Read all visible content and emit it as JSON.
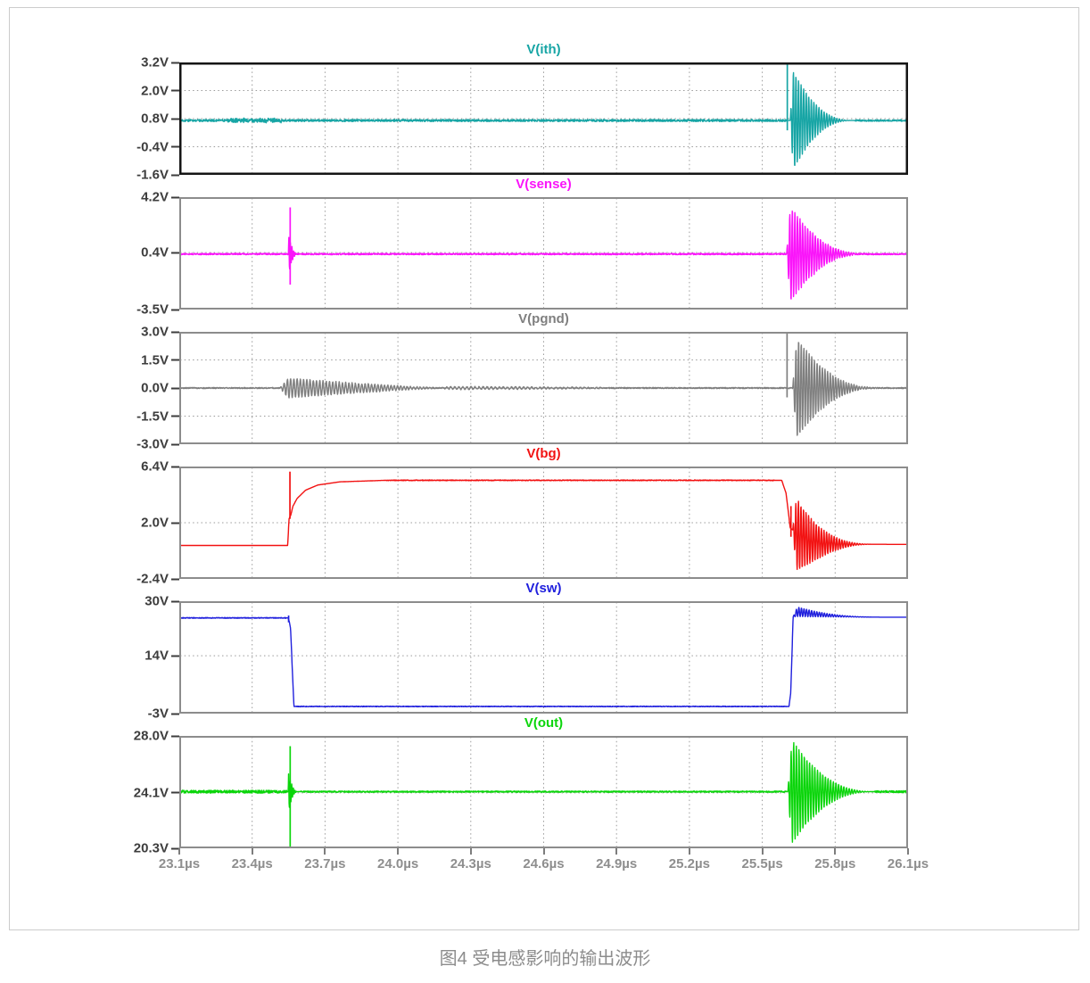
{
  "page": {
    "caption": "图4 受电感影响的输出波形"
  },
  "chart_data": {
    "type": "line",
    "x_unit": "µs",
    "x_range": [
      23.1,
      26.1
    ],
    "x_ticks": [
      {
        "label": "23.1µs",
        "v": 23.1
      },
      {
        "label": "23.4µs",
        "v": 23.4
      },
      {
        "label": "23.7µs",
        "v": 23.7
      },
      {
        "label": "24.0µs",
        "v": 24.0
      },
      {
        "label": "24.3µs",
        "v": 24.3
      },
      {
        "label": "24.6µs",
        "v": 24.6
      },
      {
        "label": "24.9µs",
        "v": 24.9
      },
      {
        "label": "25.2µs",
        "v": 25.2
      },
      {
        "label": "25.5µs",
        "v": 25.5
      },
      {
        "label": "25.8µs",
        "v": 25.8
      },
      {
        "label": "26.1µs",
        "v": 26.1
      }
    ],
    "grid": "dotted",
    "grid_color": "#9b9b9b",
    "panels": [
      {
        "title": "V(ith)",
        "color": "#17A5A5",
        "border": "#151515",
        "border_w": 2.5,
        "y_range": [
          -1.6,
          3.2
        ],
        "y_ticks": [
          {
            "label": "3.2V",
            "v": 3.2
          },
          {
            "label": "2.0V",
            "v": 2.0
          },
          {
            "label": "0.8V",
            "v": 0.8
          },
          {
            "label": "-0.4V",
            "v": -0.4
          },
          {
            "label": "-1.6V",
            "v": -1.6
          }
        ],
        "trace": {
          "base": [
            [
              23.1,
              0.72
            ],
            [
              26.1,
              0.72
            ]
          ],
          "noise": [
            {
              "t0": 23.1,
              "t1": 25.6,
              "amp": 0.045,
              "f": 60
            },
            {
              "t0": 23.3,
              "t1": 23.52,
              "amp": 0.07,
              "f": 45
            },
            {
              "t0": 25.88,
              "t1": 26.1,
              "amp": 0.035,
              "f": 60
            }
          ],
          "bursts": [
            {
              "t0": 25.615,
              "t1": 25.875,
              "amp": 2.4,
              "f": 95
            }
          ],
          "spikes": [
            {
              "t": 25.603,
              "hi": 3.18,
              "lo": 0.3
            }
          ]
        }
      },
      {
        "title": "V(sense)",
        "color": "#FA14FA",
        "border": "#8c8c8c",
        "border_w": 2,
        "y_range": [
          -3.5,
          4.2
        ],
        "y_ticks": [
          {
            "label": "4.2V",
            "v": 4.2
          },
          {
            "label": "0.4V",
            "v": 0.4
          },
          {
            "label": "-3.5V",
            "v": -3.5
          }
        ],
        "trace": {
          "base": [
            [
              23.1,
              0.3
            ],
            [
              26.1,
              0.3
            ]
          ],
          "noise": [
            {
              "t0": 23.1,
              "t1": 26.1,
              "amp": 0.05,
              "f": 55
            }
          ],
          "bursts": [
            {
              "t0": 23.549,
              "t1": 23.59,
              "amp": 1.4,
              "f": 150
            },
            {
              "t0": 25.6,
              "t1": 25.93,
              "amp": 3.7,
              "f": 95
            }
          ],
          "spikes": [
            {
              "t": 23.5565,
              "hi": 3.5,
              "lo": -1.8
            }
          ]
        }
      },
      {
        "title": "V(pgnd)",
        "color": "#7F7F7F",
        "border": "#8c8c8c",
        "border_w": 2,
        "y_range": [
          -3.0,
          3.0
        ],
        "y_ticks": [
          {
            "label": "3.0V",
            "v": 3.0
          },
          {
            "label": "1.5V",
            "v": 1.5
          },
          {
            "label": "0.0V",
            "v": 0.0
          },
          {
            "label": "-1.5V",
            "v": -1.5
          },
          {
            "label": "-3.0V",
            "v": -3.0
          }
        ],
        "trace": {
          "base": [
            [
              23.1,
              0.0
            ],
            [
              26.1,
              0.0
            ]
          ],
          "noise": [
            {
              "t0": 23.1,
              "t1": 26.1,
              "amp": 0.03,
              "f": 60
            }
          ],
          "bursts": [
            {
              "t0": 23.515,
              "t1": 24.18,
              "amp": 0.55,
              "f": 75,
              "p": 1.2
            },
            {
              "t0": 24.18,
              "t1": 24.95,
              "amp": 0.07,
              "f": 60,
              "p": 0.8
            },
            {
              "t0": 25.625,
              "t1": 25.985,
              "amp": 3.0,
              "f": 92
            }
          ],
          "spikes": [
            {
              "t": 25.602,
              "hi": 2.95,
              "lo": -0.5
            }
          ]
        }
      },
      {
        "title": "V(bg)",
        "color": "#F21212",
        "border": "#8c8c8c",
        "border_w": 2,
        "y_range": [
          -2.4,
          6.4
        ],
        "y_ticks": [
          {
            "label": "6.4V",
            "v": 6.4
          },
          {
            "label": "2.0V",
            "v": 2.0
          },
          {
            "label": "-2.4V",
            "v": -2.4
          }
        ],
        "trace": {
          "base": [
            [
              23.1,
              0.22
            ],
            [
              23.546,
              0.22
            ],
            [
              23.552,
              2.3
            ],
            [
              23.559,
              2.6
            ],
            [
              23.568,
              3.3
            ],
            [
              23.585,
              3.9
            ],
            [
              23.62,
              4.55
            ],
            [
              23.67,
              4.95
            ],
            [
              23.76,
              5.2
            ],
            [
              23.95,
              5.32
            ],
            [
              25.58,
              5.32
            ],
            [
              25.598,
              4.3
            ],
            [
              25.615,
              1.6
            ],
            [
              25.66,
              0.85
            ],
            [
              25.73,
              0.45
            ],
            [
              25.82,
              0.32
            ],
            [
              26.1,
              0.3
            ]
          ],
          "noise": [
            {
              "t0": 23.95,
              "t1": 25.55,
              "amp": 0.03,
              "f": 50
            }
          ],
          "bursts": [
            {
              "t0": 25.625,
              "t1": 25.96,
              "amp": 3.2,
              "f": 95
            }
          ],
          "spikes": [
            {
              "t": 23.5555,
              "hi": 6.0,
              "lo": 2.3
            },
            {
              "t": 25.618,
              "hi": 3.3,
              "lo": 0.9
            }
          ]
        }
      },
      {
        "title": "V(sw)",
        "color": "#2020DD",
        "border": "#8c8c8c",
        "border_w": 2,
        "y_range": [
          -3,
          30
        ],
        "y_ticks": [
          {
            "label": "30V",
            "v": 30
          },
          {
            "label": "14V",
            "v": 14
          },
          {
            "label": "-3V",
            "v": -3
          }
        ],
        "trace": {
          "base": [
            [
              23.1,
              25.1
            ],
            [
              23.548,
              25.1
            ],
            [
              23.553,
              24.0
            ],
            [
              23.558,
              22.0
            ],
            [
              23.572,
              -0.9
            ],
            [
              25.61,
              -0.9
            ],
            [
              25.617,
              3.0
            ],
            [
              25.627,
              25.4
            ],
            [
              26.1,
              25.3
            ]
          ],
          "noise": [
            {
              "t0": 23.1,
              "t1": 23.54,
              "amp": 0.12,
              "f": 45
            },
            {
              "t0": 23.58,
              "t1": 25.6,
              "amp": 0.1,
              "f": 45
            }
          ],
          "bursts": [
            {
              "t0": 25.627,
              "t1": 25.99,
              "amp": 1.6,
              "f": 95,
              "cshift": 1.7
            }
          ],
          "spikes": [
            {
              "t": 23.55,
              "hi": 25.8,
              "lo": 23.8
            }
          ]
        }
      },
      {
        "title": "V(out)",
        "color": "#0BD50B",
        "border": "#8c8c8c",
        "border_w": 2,
        "y_range": [
          20.3,
          28.0
        ],
        "y_ticks": [
          {
            "label": "28.0V",
            "v": 28.0
          },
          {
            "label": "24.1V",
            "v": 24.1
          },
          {
            "label": "20.3V",
            "v": 20.3
          }
        ],
        "trace": {
          "base": [
            [
              23.1,
              24.18
            ],
            [
              26.1,
              24.18
            ]
          ],
          "noise": [
            {
              "t0": 23.1,
              "t1": 23.545,
              "amp": 0.1,
              "f": 50
            },
            {
              "t0": 23.6,
              "t1": 25.6,
              "amp": 0.045,
              "f": 50
            },
            {
              "t0": 25.96,
              "t1": 26.1,
              "amp": 0.07,
              "f": 50
            }
          ],
          "bursts": [
            {
              "t0": 23.548,
              "t1": 23.59,
              "amp": 1.5,
              "f": 150
            },
            {
              "t0": 25.605,
              "t1": 25.965,
              "amp": 4.0,
              "f": 92
            }
          ],
          "spikes": [
            {
              "t": 23.5565,
              "hi": 27.3,
              "lo": 20.35
            }
          ]
        }
      }
    ]
  }
}
